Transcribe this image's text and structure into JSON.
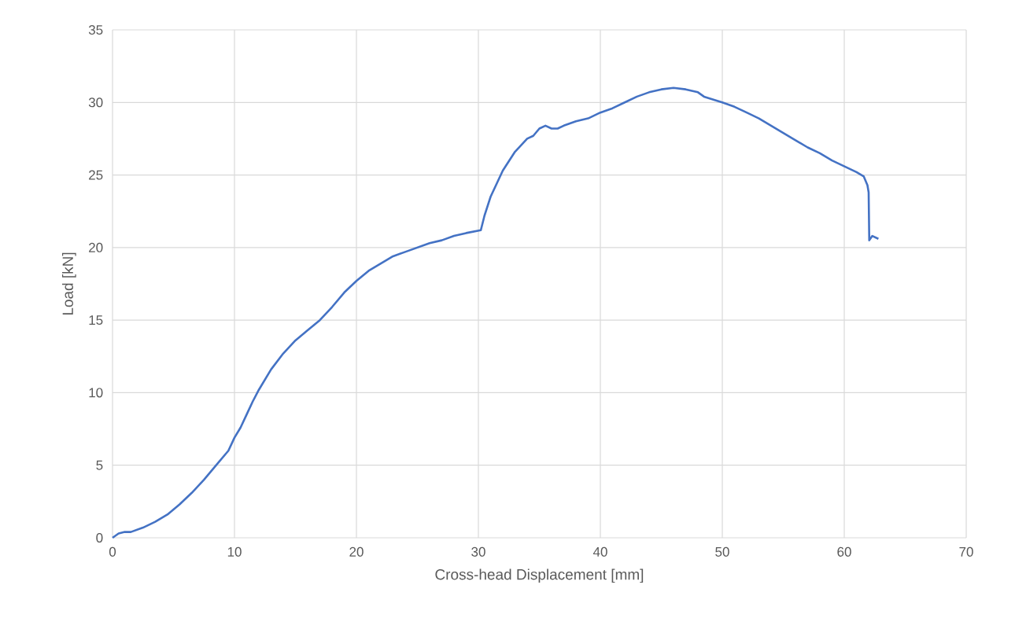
{
  "chart_data": {
    "type": "line",
    "xlabel": "Cross-head Displacement [mm]",
    "ylabel": "Load [kN]",
    "color": "#4472c4",
    "grid": true,
    "xlim": [
      0,
      70
    ],
    "ylim": [
      0,
      35
    ],
    "xticks": [
      0,
      10,
      20,
      30,
      40,
      50,
      60,
      70
    ],
    "yticks": [
      0,
      5,
      10,
      15,
      20,
      25,
      30,
      35
    ],
    "x": [
      0,
      0.5,
      1,
      1.5,
      2.5,
      3.5,
      4.5,
      5.5,
      6.5,
      7.5,
      8.5,
      9.5,
      10,
      10.5,
      11,
      11.5,
      12,
      13,
      14,
      15,
      16,
      17,
      18,
      19,
      20,
      21,
      22,
      23,
      24,
      25,
      26,
      27,
      28,
      29,
      30.2,
      30.5,
      31,
      32,
      33,
      34,
      34.5,
      35,
      35.5,
      36,
      36.5,
      37,
      38,
      39,
      40,
      41,
      42,
      43,
      44,
      45,
      46,
      47,
      48,
      48.5,
      50,
      51,
      52,
      53,
      54,
      55,
      56,
      57,
      58,
      59,
      60,
      61,
      61.6,
      61.9,
      62.0,
      62.05,
      62.3,
      62.8
    ],
    "values": [
      0,
      0.3,
      0.4,
      0.4,
      0.7,
      1.1,
      1.6,
      2.3,
      3.1,
      4.0,
      5.0,
      6.0,
      6.9,
      7.6,
      8.5,
      9.4,
      10.2,
      11.6,
      12.7,
      13.6,
      14.3,
      15.0,
      15.9,
      16.9,
      17.7,
      18.4,
      18.9,
      19.4,
      19.7,
      20.0,
      20.3,
      20.5,
      20.8,
      21.0,
      21.2,
      22.2,
      23.5,
      25.3,
      26.6,
      27.5,
      27.7,
      28.2,
      28.4,
      28.2,
      28.2,
      28.4,
      28.7,
      28.9,
      29.3,
      29.6,
      30.0,
      30.4,
      30.7,
      30.9,
      31.0,
      30.9,
      30.7,
      30.4,
      30.0,
      29.7,
      29.3,
      28.9,
      28.4,
      27.9,
      27.4,
      26.9,
      26.5,
      26.0,
      25.6,
      25.2,
      24.9,
      24.3,
      23.8,
      20.5,
      20.8,
      20.6
    ]
  }
}
